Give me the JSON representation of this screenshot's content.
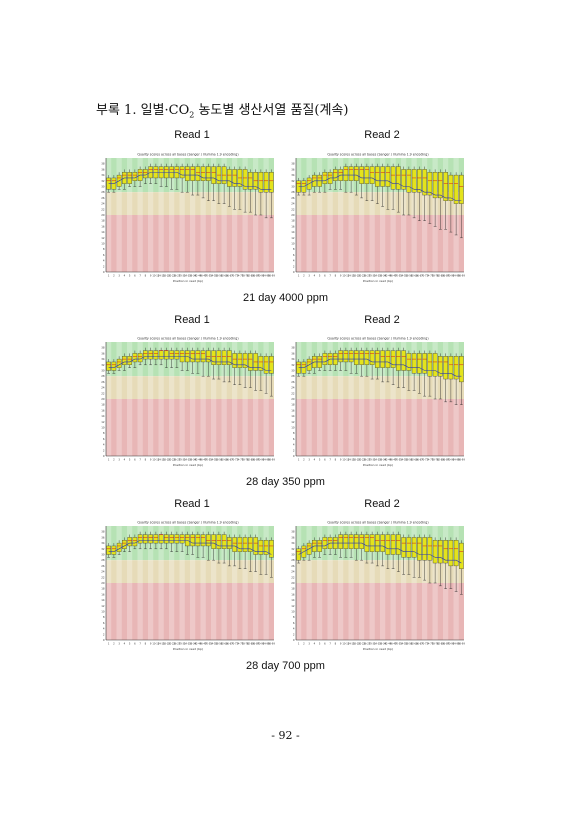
{
  "heading": {
    "prefix": "부록 1. 일별·CO",
    "sub": "2",
    "suffix": " 농도별 생산서열 품질(계속)"
  },
  "page_number": "- 92 -",
  "panels": [
    {
      "caption": "21 day 4000 ppm",
      "plots": [
        {
          "read_label": "Read 1",
          "title": "Quality scores across all bases (Sanger / Illumina 1.9 encoding)",
          "xlabel": "Position in read (bp)"
        },
        {
          "read_label": "Read 2",
          "title": "Quality scores across all bases (Sanger / Illumina 1.9 encoding)",
          "xlabel": "Position in read (bp)"
        }
      ]
    },
    {
      "caption": "28 day 350 ppm",
      "plots": [
        {
          "read_label": "Read 1",
          "title": "Quality scores across all bases (Sanger / Illumina 1.9 encoding)",
          "xlabel": "Position in read (bp)"
        },
        {
          "read_label": "Read 2",
          "title": "Quality scores across all bases (Sanger / Illumina 1.9 encoding)",
          "xlabel": "Position in read (bp)"
        }
      ]
    },
    {
      "caption": "28 day 700 ppm",
      "plots": [
        {
          "read_label": "Read 1",
          "title": "Quality scores across all bases (Sanger / Illumina 1.9 encoding)",
          "xlabel": "Position in read (bp)"
        },
        {
          "read_label": "Read 2",
          "title": "Quality scores across all bases (Sanger / Illumina 1.9 encoding)",
          "xlabel": "Position in read (bp)"
        }
      ]
    }
  ],
  "y_ticks": [
    "0",
    "2",
    "4",
    "6",
    "8",
    "10",
    "12",
    "14",
    "16",
    "18",
    "20",
    "22",
    "24",
    "26",
    "28",
    "30",
    "32",
    "34",
    "36",
    "38"
  ],
  "x_ticks": [
    "1",
    "2",
    "3",
    "4",
    "5",
    "6",
    "7",
    "8",
    "9",
    "10-11",
    "14-15",
    "18-19",
    "22-23",
    "26-27",
    "30-31",
    "34-35",
    "38-39",
    "42-43",
    "46-47",
    "50-51",
    "54-55",
    "58-59",
    "62-63",
    "66-67",
    "70-71",
    "74-75",
    "78-79",
    "82-83",
    "86-87",
    "90-91",
    "94-95",
    "98-99"
  ],
  "zone_colors": {
    "good": "#b6e2b4",
    "medium": "#e6dbb8",
    "poor": "#e8b6b6",
    "box": "#e4e31c",
    "median": "#d11a1a",
    "mean": "#2f3aa8"
  },
  "chart_data": [
    {
      "type": "box",
      "name": "21 day 4000 ppm Read 1",
      "ylim": [
        0,
        40
      ],
      "box_upper": [
        33,
        33,
        34,
        35,
        35,
        35,
        36,
        36,
        37,
        37,
        37,
        37,
        37,
        37,
        37,
        37,
        37,
        37,
        37,
        37,
        37,
        37,
        37,
        36,
        36,
        36,
        36,
        35,
        35,
        35,
        35,
        35
      ],
      "box_lower": [
        29,
        29,
        30,
        31,
        31,
        32,
        32,
        33,
        33,
        33,
        33,
        33,
        33,
        33,
        33,
        32,
        32,
        32,
        32,
        32,
        31,
        31,
        31,
        30,
        30,
        30,
        29,
        29,
        29,
        28,
        28,
        28
      ],
      "median": [
        32,
        32,
        33,
        34,
        34,
        34,
        35,
        35,
        36,
        36,
        36,
        36,
        36,
        36,
        36,
        36,
        36,
        35,
        35,
        35,
        35,
        34,
        34,
        34,
        34,
        33,
        33,
        33,
        32,
        32,
        32,
        32
      ],
      "mean": [
        31,
        31,
        32,
        33,
        33,
        33,
        34,
        34,
        35,
        35,
        35,
        35,
        35,
        35,
        34,
        34,
        34,
        34,
        33,
        33,
        33,
        32,
        32,
        32,
        31,
        31,
        30,
        30,
        30,
        29,
        29,
        29
      ],
      "whisker_lower": [
        28,
        28,
        29,
        29,
        30,
        30,
        30,
        31,
        31,
        31,
        30,
        30,
        29,
        29,
        28,
        28,
        27,
        27,
        26,
        25,
        25,
        24,
        24,
        23,
        22,
        22,
        21,
        21,
        20,
        20,
        19,
        19
      ]
    },
    {
      "type": "box",
      "name": "21 day 4000 ppm Read 2",
      "ylim": [
        0,
        40
      ],
      "box_upper": [
        32,
        32,
        33,
        34,
        34,
        35,
        35,
        36,
        36,
        37,
        37,
        37,
        37,
        37,
        37,
        37,
        37,
        37,
        37,
        37,
        36,
        36,
        36,
        36,
        36,
        35,
        35,
        35,
        35,
        34,
        34,
        34
      ],
      "box_lower": [
        28,
        28,
        29,
        30,
        30,
        31,
        31,
        32,
        32,
        32,
        32,
        32,
        31,
        31,
        31,
        30,
        30,
        30,
        29,
        29,
        29,
        28,
        28,
        28,
        27,
        27,
        26,
        26,
        25,
        25,
        24,
        24
      ],
      "median": [
        31,
        31,
        32,
        33,
        33,
        34,
        34,
        35,
        35,
        36,
        36,
        36,
        36,
        36,
        35,
        35,
        35,
        35,
        34,
        34,
        34,
        34,
        33,
        33,
        33,
        32,
        32,
        32,
        31,
        31,
        31,
        30
      ],
      "mean": [
        30,
        30,
        31,
        32,
        32,
        32,
        33,
        33,
        34,
        34,
        34,
        34,
        33,
        33,
        33,
        32,
        32,
        32,
        31,
        31,
        30,
        30,
        29,
        29,
        28,
        28,
        27,
        27,
        26,
        26,
        25,
        25
      ],
      "whisker_lower": [
        27,
        27,
        27,
        28,
        28,
        28,
        29,
        29,
        29,
        28,
        28,
        27,
        26,
        25,
        25,
        24,
        23,
        22,
        22,
        21,
        20,
        20,
        19,
        18,
        18,
        17,
        16,
        15,
        15,
        14,
        13,
        12
      ]
    },
    {
      "type": "box",
      "name": "28 day 350 ppm Read 1",
      "ylim": [
        0,
        40
      ],
      "box_upper": [
        33,
        33,
        34,
        35,
        35,
        36,
        36,
        37,
        37,
        37,
        37,
        37,
        37,
        37,
        37,
        37,
        37,
        37,
        37,
        37,
        37,
        37,
        37,
        37,
        36,
        36,
        36,
        36,
        36,
        35,
        35,
        35
      ],
      "box_lower": [
        30,
        30,
        31,
        32,
        32,
        33,
        33,
        34,
        34,
        34,
        34,
        34,
        34,
        34,
        33,
        33,
        33,
        33,
        33,
        33,
        32,
        32,
        32,
        32,
        31,
        31,
        31,
        30,
        30,
        30,
        29,
        29
      ],
      "median": [
        32,
        32,
        33,
        34,
        34,
        35,
        35,
        36,
        36,
        36,
        37,
        37,
        36,
        36,
        36,
        36,
        36,
        36,
        36,
        35,
        35,
        35,
        35,
        35,
        34,
        34,
        34,
        34,
        33,
        33,
        33,
        33
      ],
      "mean": [
        31,
        31,
        32,
        33,
        33,
        34,
        34,
        35,
        35,
        35,
        35,
        35,
        35,
        35,
        35,
        35,
        34,
        34,
        34,
        34,
        33,
        33,
        33,
        33,
        32,
        32,
        32,
        31,
        31,
        31,
        30,
        30
      ],
      "whisker_lower": [
        29,
        29,
        30,
        30,
        31,
        31,
        32,
        32,
        32,
        32,
        32,
        31,
        31,
        31,
        30,
        30,
        29,
        29,
        28,
        28,
        27,
        27,
        26,
        26,
        25,
        25,
        24,
        24,
        23,
        23,
        22,
        21
      ]
    },
    {
      "type": "box",
      "name": "28 day 350 ppm Read 2",
      "ylim": [
        0,
        40
      ],
      "box_upper": [
        33,
        33,
        34,
        35,
        35,
        36,
        36,
        36,
        37,
        37,
        37,
        37,
        37,
        37,
        37,
        37,
        37,
        37,
        37,
        37,
        37,
        36,
        36,
        36,
        36,
        36,
        36,
        35,
        35,
        35,
        35,
        35
      ],
      "box_lower": [
        29,
        29,
        30,
        31,
        31,
        32,
        32,
        32,
        33,
        33,
        33,
        32,
        32,
        32,
        32,
        31,
        31,
        31,
        31,
        30,
        30,
        30,
        29,
        29,
        29,
        28,
        28,
        28,
        27,
        27,
        27,
        26
      ],
      "median": [
        32,
        32,
        33,
        34,
        34,
        35,
        35,
        35,
        36,
        36,
        36,
        36,
        36,
        36,
        36,
        36,
        35,
        35,
        35,
        35,
        35,
        34,
        34,
        34,
        34,
        33,
        33,
        33,
        33,
        32,
        32,
        32
      ],
      "mean": [
        31,
        31,
        32,
        33,
        33,
        33,
        34,
        34,
        34,
        34,
        34,
        34,
        34,
        34,
        33,
        33,
        33,
        33,
        32,
        32,
        32,
        31,
        31,
        31,
        30,
        30,
        30,
        29,
        29,
        29,
        28,
        28
      ],
      "whisker_lower": [
        28,
        28,
        29,
        29,
        30,
        30,
        30,
        30,
        30,
        30,
        29,
        29,
        28,
        28,
        27,
        27,
        26,
        26,
        25,
        24,
        24,
        23,
        23,
        22,
        21,
        21,
        20,
        20,
        19,
        19,
        18,
        18
      ]
    },
    {
      "type": "box",
      "name": "28 day 700 ppm Read 1",
      "ylim": [
        0,
        40
      ],
      "box_upper": [
        33,
        33,
        34,
        35,
        36,
        36,
        37,
        37,
        37,
        37,
        37,
        37,
        37,
        37,
        37,
        37,
        37,
        37,
        37,
        37,
        37,
        37,
        37,
        36,
        36,
        36,
        36,
        36,
        36,
        35,
        35,
        35
      ],
      "box_lower": [
        30,
        30,
        31,
        32,
        33,
        33,
        34,
        34,
        34,
        34,
        34,
        34,
        34,
        34,
        34,
        33,
        33,
        33,
        33,
        33,
        32,
        32,
        32,
        32,
        31,
        31,
        31,
        31,
        30,
        30,
        30,
        29
      ],
      "median": [
        32,
        32,
        33,
        34,
        35,
        35,
        36,
        36,
        36,
        36,
        37,
        36,
        36,
        36,
        36,
        36,
        36,
        36,
        36,
        35,
        35,
        35,
        35,
        35,
        34,
        34,
        34,
        34,
        34,
        33,
        33,
        33
      ],
      "mean": [
        31,
        31,
        32,
        33,
        34,
        34,
        35,
        35,
        35,
        35,
        35,
        35,
        35,
        35,
        35,
        35,
        34,
        34,
        34,
        34,
        34,
        33,
        33,
        33,
        33,
        32,
        32,
        32,
        31,
        31,
        31,
        30
      ],
      "whisker_lower": [
        29,
        29,
        30,
        31,
        31,
        32,
        32,
        32,
        32,
        32,
        32,
        32,
        31,
        31,
        31,
        30,
        30,
        29,
        29,
        28,
        28,
        27,
        27,
        26,
        26,
        25,
        25,
        24,
        24,
        23,
        23,
        22
      ]
    },
    {
      "type": "box",
      "name": "28 day 700 ppm Read 2",
      "ylim": [
        0,
        40
      ],
      "box_upper": [
        32,
        33,
        34,
        35,
        35,
        36,
        36,
        36,
        37,
        37,
        37,
        37,
        37,
        37,
        37,
        37,
        37,
        37,
        37,
        37,
        36,
        36,
        36,
        36,
        36,
        36,
        35,
        35,
        35,
        35,
        35,
        34
      ],
      "box_lower": [
        28,
        29,
        30,
        31,
        31,
        32,
        32,
        32,
        32,
        32,
        32,
        32,
        32,
        31,
        31,
        31,
        31,
        30,
        30,
        30,
        29,
        29,
        29,
        28,
        28,
        28,
        27,
        27,
        27,
        26,
        26,
        25
      ],
      "median": [
        31,
        32,
        33,
        34,
        34,
        35,
        35,
        35,
        36,
        36,
        36,
        36,
        36,
        36,
        36,
        35,
        35,
        35,
        35,
        35,
        34,
        34,
        34,
        34,
        33,
        33,
        33,
        33,
        32,
        32,
        32,
        31
      ],
      "mean": [
        30,
        31,
        32,
        33,
        33,
        33,
        34,
        34,
        34,
        34,
        34,
        34,
        34,
        33,
        33,
        33,
        33,
        32,
        32,
        32,
        31,
        31,
        31,
        30,
        30,
        30,
        29,
        29,
        28,
        28,
        28,
        27
      ],
      "whisker_lower": [
        27,
        28,
        28,
        29,
        29,
        30,
        30,
        30,
        29,
        29,
        29,
        28,
        28,
        27,
        27,
        26,
        26,
        25,
        25,
        24,
        23,
        23,
        22,
        22,
        21,
        20,
        20,
        19,
        18,
        18,
        17,
        16
      ]
    }
  ]
}
